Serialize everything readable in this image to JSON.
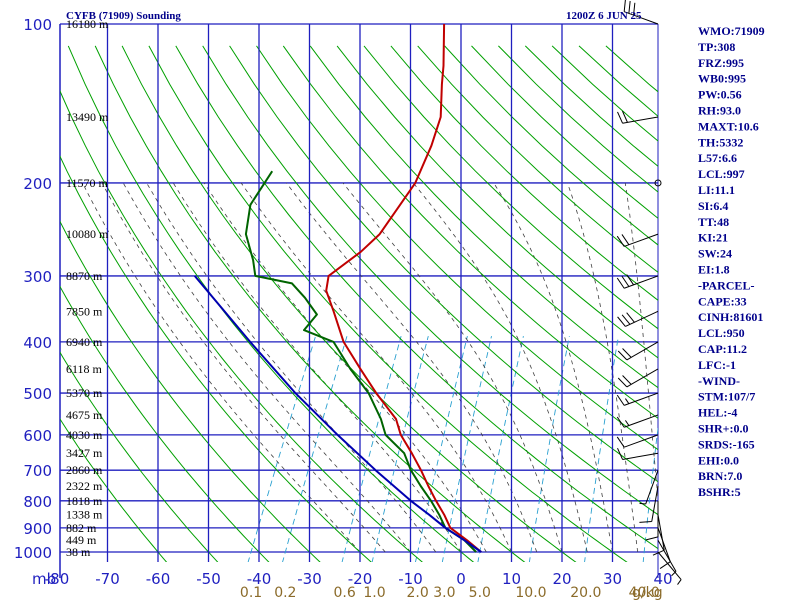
{
  "header": {
    "title": "CYFB (71909) Sounding",
    "valid": "1200Z  6 JUN 25"
  },
  "axes": {
    "pressure_unit": "mb",
    "pressure_levels": [
      100,
      200,
      300,
      400,
      500,
      600,
      700,
      800,
      900,
      1000
    ],
    "pressure_labels": [
      "100",
      "200",
      "300",
      "400",
      "500",
      "600",
      "700",
      "800",
      "900",
      "1000"
    ],
    "temp_ticks": [
      -80,
      -70,
      -60,
      -50,
      -40,
      -30,
      -20,
      -10,
      0,
      10,
      20,
      30,
      40
    ],
    "temp_labels": [
      "-80",
      "-70",
      "-60",
      "-50",
      "-40",
      "-30",
      "-20",
      "-10",
      "0",
      "10",
      "20",
      "30",
      "40"
    ],
    "mixing_ratio_labels": [
      "0.1",
      "0.2",
      "0.6",
      "1.0",
      "2.0",
      "3.0",
      "5.0",
      "10.0",
      "20.0",
      "40.0"
    ],
    "mixing_ratio_unit": "g/kg"
  },
  "heights": [
    {
      "p": 100,
      "label": "16180 m"
    },
    {
      "p": 150,
      "label": "13490 m"
    },
    {
      "p": 200,
      "label": "11570 m"
    },
    {
      "p": 250,
      "label": "10080 m"
    },
    {
      "p": 300,
      "label": "8870 m"
    },
    {
      "p": 350,
      "label": "7850 m"
    },
    {
      "p": 400,
      "label": "6940 m"
    },
    {
      "p": 450,
      "label": "6118 m"
    },
    {
      "p": 500,
      "label": "5370 m"
    },
    {
      "p": 550,
      "label": "4675 m"
    },
    {
      "p": 600,
      "label": "4030 m"
    },
    {
      "p": 650,
      "label": "3427 m"
    },
    {
      "p": 700,
      "label": "2860 m"
    },
    {
      "p": 750,
      "label": "2322 m"
    },
    {
      "p": 800,
      "label": "1818 m"
    },
    {
      "p": 850,
      "label": "1338 m"
    },
    {
      "p": 900,
      "label": "882 m"
    },
    {
      "p": 950,
      "label": "449 m"
    },
    {
      "p": 1000,
      "label": "38 m"
    }
  ],
  "stats": [
    "WMO:71909",
    "TP:308",
    "FRZ:995",
    "WB0:995",
    "PW:0.56",
    "RH:93.0",
    "MAXT:10.6",
    "TH:5332",
    "L57:6.6",
    "LCL:997",
    "LI:11.1",
    "SI:6.4",
    "TT:48",
    "KI:21",
    "SW:24",
    "EI:1.8",
    "-PARCEL-",
    "CAPE:33",
    "CINH:81601",
    "LCL:950",
    "CAP:11.2",
    "LFC:-1",
    "-WIND-",
    "STM:107/7",
    "HEL:-4",
    "SHR+:0.0",
    "SRDS:-165",
    "EHI:0.0",
    "BRN:7.0",
    "BSHR:5"
  ],
  "colors": {
    "grid": "#1f1fbf",
    "dry_adiabat": "#00a000",
    "temperature": "#c00000",
    "dewpoint": "#006400",
    "parcel": "#0000b0",
    "moist_adiabat": "#404040",
    "mixing_ratio": "#2aa0d0",
    "stats_text": "#00008b"
  },
  "chart_data": {
    "type": "skew-t",
    "title": "CYFB (71909) Sounding",
    "pressure_range_mb": [
      100,
      1000
    ],
    "temperature_range_c": [
      -80,
      40
    ],
    "series": [
      {
        "name": "temperature",
        "points": [
          {
            "p": 1000,
            "t": 4.0
          },
          {
            "p": 950,
            "t": 0.0
          },
          {
            "p": 900,
            "t": -4.5
          },
          {
            "p": 850,
            "t": -7.0
          },
          {
            "p": 800,
            "t": -10.0
          },
          {
            "p": 750,
            "t": -13.0
          },
          {
            "p": 700,
            "t": -16.0
          },
          {
            "p": 650,
            "t": -19.5
          },
          {
            "p": 600,
            "t": -23.5
          },
          {
            "p": 560,
            "t": -26.0
          },
          {
            "p": 500,
            "t": -32.5
          },
          {
            "p": 450,
            "t": -38.0
          },
          {
            "p": 400,
            "t": -44.0
          },
          {
            "p": 350,
            "t": -49.0
          },
          {
            "p": 320,
            "t": -52.5
          },
          {
            "p": 300,
            "t": -53.5
          },
          {
            "p": 270,
            "t": -49.5
          },
          {
            "p": 250,
            "t": -47.5
          },
          {
            "p": 200,
            "t": -45.5
          },
          {
            "p": 170,
            "t": -46.0
          },
          {
            "p": 150,
            "t": -47.0
          },
          {
            "p": 130,
            "t": -50.0
          },
          {
            "p": 120,
            "t": -51.5
          },
          {
            "p": 100,
            "t": -55.5
          }
        ]
      },
      {
        "name": "dewpoint",
        "points": [
          {
            "p": 1000,
            "t": 3.0
          },
          {
            "p": 950,
            "t": -0.5
          },
          {
            "p": 900,
            "t": -5.5
          },
          {
            "p": 850,
            "t": -8.0
          },
          {
            "p": 800,
            "t": -11.0
          },
          {
            "p": 750,
            "t": -14.5
          },
          {
            "p": 700,
            "t": -18.0
          },
          {
            "p": 650,
            "t": -21.0
          },
          {
            "p": 600,
            "t": -26.5
          },
          {
            "p": 560,
            "t": -29.0
          },
          {
            "p": 500,
            "t": -34.0
          },
          {
            "p": 450,
            "t": -40.0
          },
          {
            "p": 400,
            "t": -46.0
          },
          {
            "p": 380,
            "t": -53.0
          },
          {
            "p": 355,
            "t": -52.0
          },
          {
            "p": 330,
            "t": -56.0
          },
          {
            "p": 310,
            "t": -60.0
          },
          {
            "p": 300,
            "t": -68.0
          },
          {
            "p": 280,
            "t": -70.0
          },
          {
            "p": 250,
            "t": -74.0
          },
          {
            "p": 220,
            "t": -76.0
          },
          {
            "p": 190,
            "t": -75.0
          }
        ]
      },
      {
        "name": "parcel",
        "points": [
          {
            "p": 1000,
            "t": 4.0
          },
          {
            "p": 950,
            "t": -0.5
          },
          {
            "p": 900,
            "t": -5.5
          },
          {
            "p": 850,
            "t": -10.0
          },
          {
            "p": 800,
            "t": -15.0
          },
          {
            "p": 700,
            "t": -25.0
          },
          {
            "p": 600,
            "t": -36.0
          },
          {
            "p": 500,
            "t": -48.5
          },
          {
            "p": 400,
            "t": -62.5
          },
          {
            "p": 300,
            "t": -80.0
          }
        ]
      }
    ],
    "winds": [
      {
        "p": 100,
        "dir": 290,
        "spd": 30
      },
      {
        "p": 150,
        "dir": 260,
        "spd": 20
      },
      {
        "p": 200,
        "dir": 0,
        "spd": 0
      },
      {
        "p": 250,
        "dir": 250,
        "spd": 20
      },
      {
        "p": 300,
        "dir": 250,
        "spd": 30
      },
      {
        "p": 350,
        "dir": 245,
        "spd": 30
      },
      {
        "p": 400,
        "dir": 240,
        "spd": 20
      },
      {
        "p": 450,
        "dir": 240,
        "spd": 20
      },
      {
        "p": 500,
        "dir": 250,
        "spd": 15
      },
      {
        "p": 550,
        "dir": 250,
        "spd": 15
      },
      {
        "p": 600,
        "dir": 250,
        "spd": 10
      },
      {
        "p": 650,
        "dir": 260,
        "spd": 10
      },
      {
        "p": 700,
        "dir": 200,
        "spd": 5
      },
      {
        "p": 750,
        "dir": 190,
        "spd": 10
      },
      {
        "p": 800,
        "dir": 180,
        "spd": 10
      },
      {
        "p": 850,
        "dir": 170,
        "spd": 10
      },
      {
        "p": 900,
        "dir": 160,
        "spd": 10
      },
      {
        "p": 950,
        "dir": 150,
        "spd": 5
      },
      {
        "p": 1000,
        "dir": 140,
        "spd": 5
      }
    ]
  }
}
